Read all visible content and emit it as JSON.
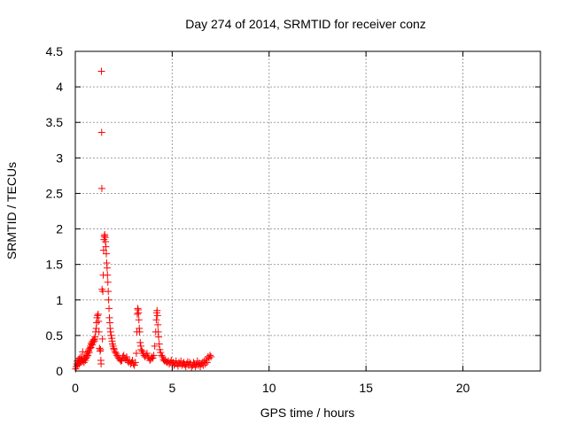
{
  "chart_data": {
    "type": "scatter",
    "title": "Day 274 of 2014, SRMTID for receiver conz",
    "xlabel": "GPS time / hours",
    "ylabel": "SRMTID / TECUs",
    "xlim": [
      0,
      24
    ],
    "ylim": [
      0,
      4.5
    ],
    "xticks": [
      0,
      5,
      10,
      15,
      20
    ],
    "xtick_labels": [
      "0",
      "5",
      "10",
      "15",
      "20"
    ],
    "yticks": [
      0,
      0.5,
      1,
      1.5,
      2,
      2.5,
      3,
      3.5,
      4,
      4.5
    ],
    "ytick_labels": [
      "0",
      "0.5",
      "1",
      "1.5",
      "2",
      "2.5",
      "3",
      "3.5",
      "4",
      "4.5"
    ],
    "grid": true,
    "marker": "+",
    "series": [
      {
        "name": "SRMTID",
        "color": "#ff0000",
        "points": [
          [
            0.02,
            0.03
          ],
          [
            0.05,
            0.06
          ],
          [
            0.08,
            0.1
          ],
          [
            0.1,
            0.14
          ],
          [
            0.12,
            0.08
          ],
          [
            0.15,
            0.12
          ],
          [
            0.18,
            0.16
          ],
          [
            0.2,
            0.1
          ],
          [
            0.22,
            0.18
          ],
          [
            0.25,
            0.12
          ],
          [
            0.28,
            0.15
          ],
          [
            0.3,
            0.2
          ],
          [
            0.32,
            0.13
          ],
          [
            0.35,
            0.16
          ],
          [
            0.38,
            0.27
          ],
          [
            0.4,
            0.14
          ],
          [
            0.42,
            0.18
          ],
          [
            0.45,
            0.12
          ],
          [
            0.48,
            0.17
          ],
          [
            0.5,
            0.2
          ],
          [
            0.52,
            0.15
          ],
          [
            0.55,
            0.18
          ],
          [
            0.58,
            0.22
          ],
          [
            0.6,
            0.2
          ],
          [
            0.62,
            0.25
          ],
          [
            0.65,
            0.22
          ],
          [
            0.68,
            0.28
          ],
          [
            0.7,
            0.3
          ],
          [
            0.72,
            0.26
          ],
          [
            0.75,
            0.32
          ],
          [
            0.78,
            0.35
          ],
          [
            0.8,
            0.33
          ],
          [
            0.82,
            0.38
          ],
          [
            0.85,
            0.4
          ],
          [
            0.88,
            0.37
          ],
          [
            0.9,
            0.42
          ],
          [
            0.92,
            0.4
          ],
          [
            0.95,
            0.44
          ],
          [
            0.98,
            0.42
          ],
          [
            1.0,
            0.45
          ],
          [
            1.02,
            0.48
          ],
          [
            1.05,
            0.55
          ],
          [
            1.08,
            0.6
          ],
          [
            1.1,
            0.68
          ],
          [
            1.12,
            0.75
          ],
          [
            1.15,
            0.78
          ],
          [
            1.18,
            0.8
          ],
          [
            1.2,
            0.7
          ],
          [
            1.22,
            0.55
          ],
          [
            1.25,
            0.32
          ],
          [
            1.28,
            0.28
          ],
          [
            1.3,
            0.3
          ],
          [
            1.32,
            0.15
          ],
          [
            1.33,
            0.1
          ],
          [
            1.35,
            4.22
          ],
          [
            1.36,
            3.36
          ],
          [
            1.37,
            2.57
          ],
          [
            1.38,
            1.15
          ],
          [
            1.4,
            0.45
          ],
          [
            1.42,
            1.12
          ],
          [
            1.44,
            1.35
          ],
          [
            1.46,
            1.7
          ],
          [
            1.48,
            1.85
          ],
          [
            1.5,
            1.9
          ],
          [
            1.52,
            1.92
          ],
          [
            1.54,
            1.88
          ],
          [
            1.56,
            1.82
          ],
          [
            1.58,
            1.75
          ],
          [
            1.6,
            1.65
          ],
          [
            1.62,
            1.52
          ],
          [
            1.64,
            1.45
          ],
          [
            1.66,
            1.35
          ],
          [
            1.68,
            1.25
          ],
          [
            1.7,
            1.12
          ],
          [
            1.72,
            1.0
          ],
          [
            1.74,
            0.88
          ],
          [
            1.76,
            0.75
          ],
          [
            1.78,
            0.68
          ],
          [
            1.8,
            0.6
          ],
          [
            1.82,
            0.55
          ],
          [
            1.85,
            0.5
          ],
          [
            1.88,
            0.46
          ],
          [
            1.9,
            0.42
          ],
          [
            1.92,
            0.38
          ],
          [
            1.95,
            0.35
          ],
          [
            1.98,
            0.32
          ],
          [
            2.0,
            0.3
          ],
          [
            2.05,
            0.27
          ],
          [
            2.1,
            0.25
          ],
          [
            2.15,
            0.22
          ],
          [
            2.2,
            0.2
          ],
          [
            2.25,
            0.18
          ],
          [
            2.3,
            0.16
          ],
          [
            2.35,
            0.14
          ],
          [
            2.4,
            0.15
          ],
          [
            2.45,
            0.2
          ],
          [
            2.5,
            0.22
          ],
          [
            2.55,
            0.18
          ],
          [
            2.6,
            0.16
          ],
          [
            2.65,
            0.2
          ],
          [
            2.7,
            0.15
          ],
          [
            2.75,
            0.12
          ],
          [
            2.8,
            0.14
          ],
          [
            2.85,
            0.1
          ],
          [
            2.9,
            0.12
          ],
          [
            2.95,
            0.15
          ],
          [
            3.0,
            0.1
          ],
          [
            3.05,
            0.08
          ],
          [
            3.1,
            0.12
          ],
          [
            3.15,
            0.25
          ],
          [
            3.18,
            0.55
          ],
          [
            3.2,
            0.8
          ],
          [
            3.22,
            0.88
          ],
          [
            3.24,
            0.86
          ],
          [
            3.26,
            0.82
          ],
          [
            3.28,
            0.72
          ],
          [
            3.3,
            0.6
          ],
          [
            3.32,
            0.55
          ],
          [
            3.35,
            0.4
          ],
          [
            3.38,
            0.35
          ],
          [
            3.4,
            0.3
          ],
          [
            3.45,
            0.28
          ],
          [
            3.5,
            0.25
          ],
          [
            3.55,
            0.22
          ],
          [
            3.6,
            0.2
          ],
          [
            3.65,
            0.22
          ],
          [
            3.7,
            0.25
          ],
          [
            3.75,
            0.2
          ],
          [
            3.8,
            0.18
          ],
          [
            3.85,
            0.15
          ],
          [
            3.9,
            0.17
          ],
          [
            3.95,
            0.2
          ],
          [
            4.0,
            0.18
          ],
          [
            4.05,
            0.22
          ],
          [
            4.1,
            0.35
          ],
          [
            4.15,
            0.55
          ],
          [
            4.18,
            0.72
          ],
          [
            4.2,
            0.82
          ],
          [
            4.22,
            0.85
          ],
          [
            4.24,
            0.78
          ],
          [
            4.26,
            0.65
          ],
          [
            4.28,
            0.55
          ],
          [
            4.3,
            0.48
          ],
          [
            4.33,
            0.38
          ],
          [
            4.36,
            0.3
          ],
          [
            4.4,
            0.26
          ],
          [
            4.45,
            0.22
          ],
          [
            4.5,
            0.2
          ],
          [
            4.55,
            0.16
          ],
          [
            4.6,
            0.14
          ],
          [
            4.65,
            0.15
          ],
          [
            4.7,
            0.13
          ],
          [
            4.75,
            0.12
          ],
          [
            4.8,
            0.14
          ],
          [
            4.85,
            0.1
          ],
          [
            4.9,
            0.12
          ],
          [
            4.95,
            0.15
          ],
          [
            5.0,
            0.1
          ],
          [
            5.05,
            0.12
          ],
          [
            5.1,
            0.08
          ],
          [
            5.15,
            0.1
          ],
          [
            5.2,
            0.14
          ],
          [
            5.25,
            0.1
          ],
          [
            5.3,
            0.07
          ],
          [
            5.35,
            0.12
          ],
          [
            5.4,
            0.1
          ],
          [
            5.45,
            0.14
          ],
          [
            5.5,
            0.08
          ],
          [
            5.55,
            0.1
          ],
          [
            5.6,
            0.12
          ],
          [
            5.65,
            0.09
          ],
          [
            5.7,
            0.06
          ],
          [
            5.75,
            0.1
          ],
          [
            5.8,
            0.13
          ],
          [
            5.85,
            0.08
          ],
          [
            5.9,
            0.12
          ],
          [
            5.95,
            0.1
          ],
          [
            6.0,
            0.05
          ],
          [
            6.05,
            0.08
          ],
          [
            6.1,
            0.12
          ],
          [
            6.15,
            0.1
          ],
          [
            6.2,
            0.06
          ],
          [
            6.25,
            0.09
          ],
          [
            6.3,
            0.14
          ],
          [
            6.35,
            0.08
          ],
          [
            6.4,
            0.11
          ],
          [
            6.45,
            0.06
          ],
          [
            6.5,
            0.1
          ],
          [
            6.55,
            0.12
          ],
          [
            6.6,
            0.08
          ],
          [
            6.65,
            0.14
          ],
          [
            6.7,
            0.1
          ],
          [
            6.75,
            0.16
          ],
          [
            6.8,
            0.12
          ],
          [
            6.85,
            0.2
          ],
          [
            6.9,
            0.18
          ],
          [
            6.95,
            0.22
          ],
          [
            7.0,
            0.2
          ]
        ]
      }
    ]
  }
}
